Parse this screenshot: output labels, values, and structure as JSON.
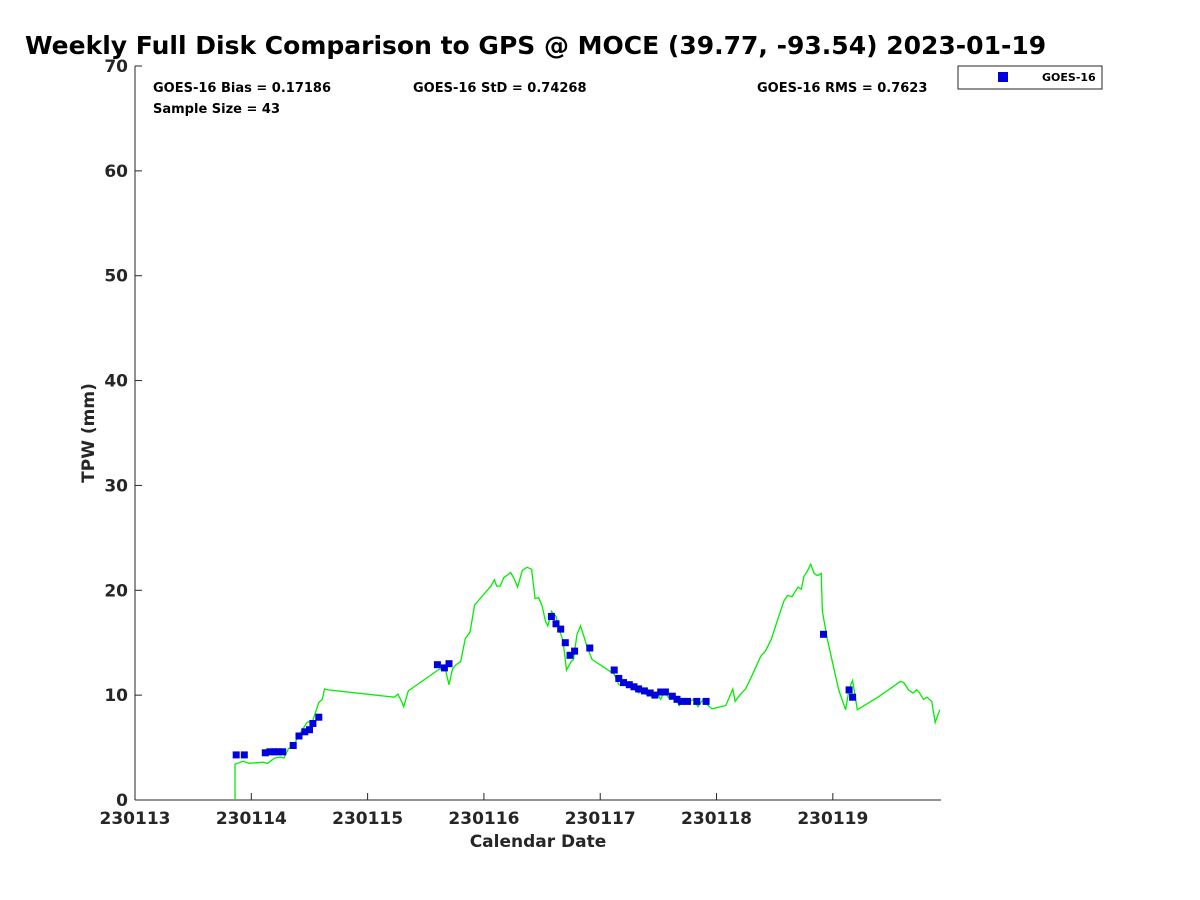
{
  "chart_data": {
    "type": "scatter",
    "title": "Weekly Full Disk Comparison to GPS @ MOCE (39.77, -93.54) 2023-01-19",
    "xlabel": "Calendar Date",
    "ylabel": "TPW (mm)",
    "xlim": [
      230113,
      230119.93
    ],
    "ylim": [
      0,
      70
    ],
    "x_ticks": [
      {
        "value": 230113,
        "label": "230113"
      },
      {
        "value": 230114,
        "label": "230114"
      },
      {
        "value": 230115,
        "label": "230115"
      },
      {
        "value": 230116,
        "label": "230116"
      },
      {
        "value": 230117,
        "label": "230117"
      },
      {
        "value": 230118,
        "label": "230118"
      },
      {
        "value": 230119,
        "label": "230119"
      }
    ],
    "y_ticks": [
      {
        "value": 0,
        "label": "0"
      },
      {
        "value": 10,
        "label": "10"
      },
      {
        "value": 20,
        "label": "20"
      },
      {
        "value": 30,
        "label": "30"
      },
      {
        "value": 40,
        "label": "40"
      },
      {
        "value": 50,
        "label": "50"
      },
      {
        "value": 60,
        "label": "60"
      },
      {
        "value": 70,
        "label": "70"
      }
    ],
    "stats": {
      "bias": "GOES-16 Bias = 0.17186",
      "std": "GOES-16 StD = 0.74268",
      "rms": "GOES-16 RMS = 0.7623",
      "sample_size": "Sample Size = 43"
    },
    "legend": {
      "label": "GOES-16",
      "position": "top-right-outside"
    },
    "colors": {
      "goes": "#0000dd",
      "gps": "#00ee00",
      "axis": "#262626"
    },
    "series": [
      {
        "name": "GOES-16",
        "type": "scatter",
        "points": [
          [
            230113.87,
            4.3
          ],
          [
            230113.94,
            4.3
          ],
          [
            230114.12,
            4.5
          ],
          [
            230114.16,
            4.6
          ],
          [
            230114.2,
            4.6
          ],
          [
            230114.23,
            4.6
          ],
          [
            230114.27,
            4.6
          ],
          [
            230114.36,
            5.2
          ],
          [
            230114.41,
            6.1
          ],
          [
            230114.46,
            6.5
          ],
          [
            230114.5,
            6.7
          ],
          [
            230114.53,
            7.3
          ],
          [
            230114.58,
            7.9
          ],
          [
            230115.6,
            12.9
          ],
          [
            230115.66,
            12.6
          ],
          [
            230115.7,
            13.0
          ],
          [
            230116.58,
            17.5
          ],
          [
            230116.62,
            16.8
          ],
          [
            230116.66,
            16.3
          ],
          [
            230116.7,
            15.0
          ],
          [
            230116.74,
            13.8
          ],
          [
            230116.78,
            14.2
          ],
          [
            230116.91,
            14.5
          ],
          [
            230117.12,
            12.4
          ],
          [
            230117.16,
            11.6
          ],
          [
            230117.2,
            11.2
          ],
          [
            230117.25,
            11.0
          ],
          [
            230117.29,
            10.8
          ],
          [
            230117.33,
            10.6
          ],
          [
            230117.38,
            10.4
          ],
          [
            230117.43,
            10.2
          ],
          [
            230117.47,
            10.0
          ],
          [
            230117.52,
            10.3
          ],
          [
            230117.56,
            10.3
          ],
          [
            230117.62,
            9.9
          ],
          [
            230117.66,
            9.6
          ],
          [
            230117.7,
            9.4
          ],
          [
            230117.75,
            9.4
          ],
          [
            230117.83,
            9.4
          ],
          [
            230117.91,
            9.4
          ],
          [
            230118.92,
            15.8
          ],
          [
            230119.14,
            10.5
          ],
          [
            230119.17,
            9.8
          ]
        ]
      },
      {
        "name": "GPS",
        "type": "line",
        "points": [
          [
            230113.86,
            0.0
          ],
          [
            230113.86,
            3.4
          ],
          [
            230113.93,
            3.7
          ],
          [
            230113.98,
            3.5
          ],
          [
            230114.1,
            3.6
          ],
          [
            230114.14,
            3.5
          ],
          [
            230114.2,
            4.0
          ],
          [
            230114.25,
            4.1
          ],
          [
            230114.28,
            4.0
          ],
          [
            230114.32,
            4.9
          ],
          [
            230114.36,
            5.1
          ],
          [
            230114.41,
            6.2
          ],
          [
            230114.48,
            7.4
          ],
          [
            230114.53,
            7.6
          ],
          [
            230114.58,
            9.3
          ],
          [
            230114.61,
            9.6
          ],
          [
            230114.63,
            10.6
          ],
          [
            230114.66,
            10.5
          ],
          [
            230115.23,
            9.8
          ],
          [
            230115.26,
            10.1
          ],
          [
            230115.3,
            9.2
          ],
          [
            230115.31,
            8.9
          ],
          [
            230115.35,
            10.4
          ],
          [
            230115.62,
            12.5
          ],
          [
            230115.67,
            12.4
          ],
          [
            230115.7,
            11.0
          ],
          [
            230115.73,
            12.5
          ],
          [
            230115.76,
            12.9
          ],
          [
            230115.8,
            13.2
          ],
          [
            230115.84,
            15.4
          ],
          [
            230115.88,
            16.0
          ],
          [
            230115.92,
            18.6
          ],
          [
            230115.99,
            19.5
          ],
          [
            230116.06,
            20.4
          ],
          [
            230116.09,
            21.0
          ],
          [
            230116.11,
            20.4
          ],
          [
            230116.14,
            20.4
          ],
          [
            230116.17,
            21.2
          ],
          [
            230116.23,
            21.7
          ],
          [
            230116.26,
            21.1
          ],
          [
            230116.29,
            20.3
          ],
          [
            230116.33,
            21.9
          ],
          [
            230116.37,
            22.2
          ],
          [
            230116.41,
            22.0
          ],
          [
            230116.44,
            19.2
          ],
          [
            230116.47,
            19.3
          ],
          [
            230116.5,
            18.5
          ],
          [
            230116.53,
            17.0
          ],
          [
            230116.55,
            16.6
          ],
          [
            230116.58,
            18.0
          ],
          [
            230116.62,
            17.5
          ],
          [
            230116.65,
            16.2
          ],
          [
            230116.68,
            15.2
          ],
          [
            230116.71,
            12.4
          ],
          [
            230116.75,
            13.2
          ],
          [
            230116.77,
            13.4
          ],
          [
            230116.8,
            15.8
          ],
          [
            230116.83,
            16.6
          ],
          [
            230116.86,
            15.6
          ],
          [
            230116.89,
            14.5
          ],
          [
            230116.93,
            13.4
          ],
          [
            230117.04,
            12.6
          ],
          [
            230117.12,
            12.0
          ],
          [
            230117.16,
            11.0
          ],
          [
            230117.25,
            10.9
          ],
          [
            230117.29,
            10.6
          ],
          [
            230117.33,
            10.2
          ],
          [
            230117.36,
            10.4
          ],
          [
            230117.4,
            10.0
          ],
          [
            230117.45,
            10.0
          ],
          [
            230117.49,
            10.2
          ],
          [
            230117.52,
            9.6
          ],
          [
            230117.55,
            10.3
          ],
          [
            230117.6,
            9.6
          ],
          [
            230117.65,
            9.7
          ],
          [
            230117.68,
            9.0
          ],
          [
            230117.72,
            9.6
          ],
          [
            230117.76,
            9.3
          ],
          [
            230117.8,
            9.6
          ],
          [
            230117.84,
            8.9
          ],
          [
            230117.88,
            9.5
          ],
          [
            230117.92,
            9.1
          ],
          [
            230117.96,
            8.7
          ],
          [
            230118.08,
            9.0
          ],
          [
            230118.14,
            10.6
          ],
          [
            230118.16,
            9.4
          ],
          [
            230118.2,
            10.0
          ],
          [
            230118.25,
            10.6
          ],
          [
            230118.31,
            12.0
          ],
          [
            230118.38,
            13.7
          ],
          [
            230118.42,
            14.2
          ],
          [
            230118.47,
            15.3
          ],
          [
            230118.52,
            17.0
          ],
          [
            230118.58,
            19.0
          ],
          [
            230118.61,
            19.5
          ],
          [
            230118.65,
            19.4
          ],
          [
            230118.7,
            20.3
          ],
          [
            230118.73,
            20.1
          ],
          [
            230118.75,
            21.3
          ],
          [
            230118.78,
            21.8
          ],
          [
            230118.81,
            22.5
          ],
          [
            230118.84,
            21.6
          ],
          [
            230118.87,
            21.4
          ],
          [
            230118.9,
            21.6
          ],
          [
            230118.91,
            18.0
          ],
          [
            230118.95,
            15.5
          ],
          [
            230119.0,
            13.0
          ],
          [
            230119.05,
            10.5
          ],
          [
            230119.11,
            8.6
          ],
          [
            230119.14,
            10.6
          ],
          [
            230119.17,
            11.4
          ],
          [
            230119.21,
            8.6
          ],
          [
            230119.4,
            9.9
          ],
          [
            230119.58,
            11.3
          ],
          [
            230119.61,
            11.2
          ],
          [
            230119.65,
            10.5
          ],
          [
            230119.69,
            10.2
          ],
          [
            230119.72,
            10.5
          ],
          [
            230119.74,
            10.3
          ],
          [
            230119.78,
            9.6
          ],
          [
            230119.81,
            9.8
          ],
          [
            230119.85,
            9.4
          ],
          [
            230119.88,
            7.4
          ],
          [
            230119.92,
            8.6
          ]
        ]
      }
    ]
  }
}
